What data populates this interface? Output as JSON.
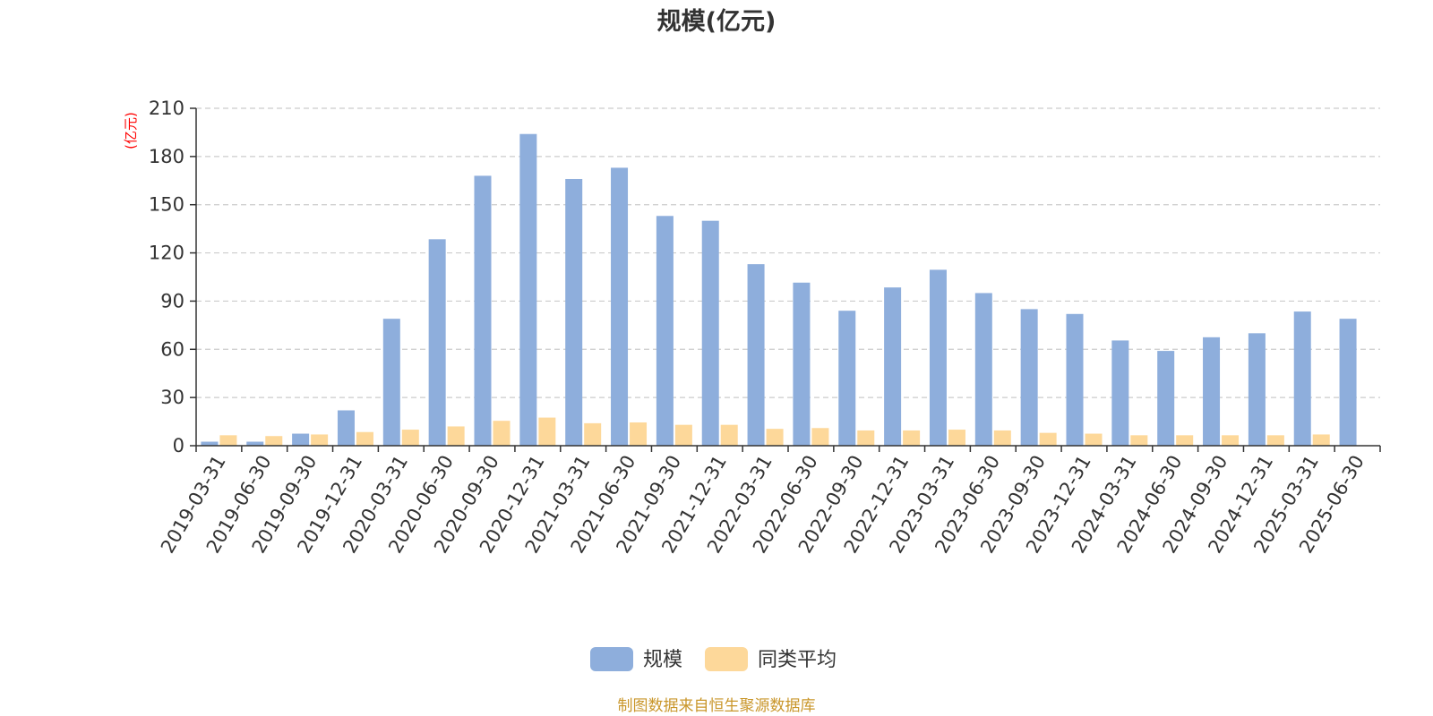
{
  "chart_data": {
    "type": "bar",
    "title": "规模(亿元)",
    "unit_label": "(亿元)",
    "categories": [
      "2019-03-31",
      "2019-06-30",
      "2019-09-30",
      "2019-12-31",
      "2020-03-31",
      "2020-06-30",
      "2020-09-30",
      "2020-12-31",
      "2021-03-31",
      "2021-06-30",
      "2021-09-30",
      "2021-12-31",
      "2022-03-31",
      "2022-06-30",
      "2022-09-30",
      "2022-12-31",
      "2023-03-31",
      "2023-06-30",
      "2023-09-30",
      "2023-12-31",
      "2024-03-31",
      "2024-06-30",
      "2024-09-30",
      "2024-12-31",
      "2025-03-31",
      "2025-06-30"
    ],
    "series": [
      {
        "name": "规模",
        "color": "#8eaedc",
        "values": [
          2.5,
          2.5,
          7.5,
          22,
          79,
          128.5,
          168,
          194,
          166,
          173,
          143,
          140,
          113,
          101.5,
          84,
          98.5,
          109.5,
          95,
          85,
          82,
          65.5,
          59,
          67.5,
          70,
          83.5,
          79
        ]
      },
      {
        "name": "同类平均",
        "color": "#fdd89a",
        "values": [
          6.5,
          6,
          7,
          8.5,
          10,
          12,
          15.5,
          17.5,
          14,
          14.5,
          13,
          13,
          10.5,
          11,
          9.5,
          9.5,
          10,
          9.5,
          8,
          7.5,
          6.5,
          6.5,
          6.5,
          6.5,
          7,
          0
        ]
      }
    ],
    "ylim": [
      0,
      210
    ],
    "yticks": [
      0,
      30,
      60,
      90,
      120,
      150,
      180,
      210
    ],
    "grid": true,
    "legend_position": "bottom-center"
  },
  "source": "制图数据来自恒生聚源数据库"
}
